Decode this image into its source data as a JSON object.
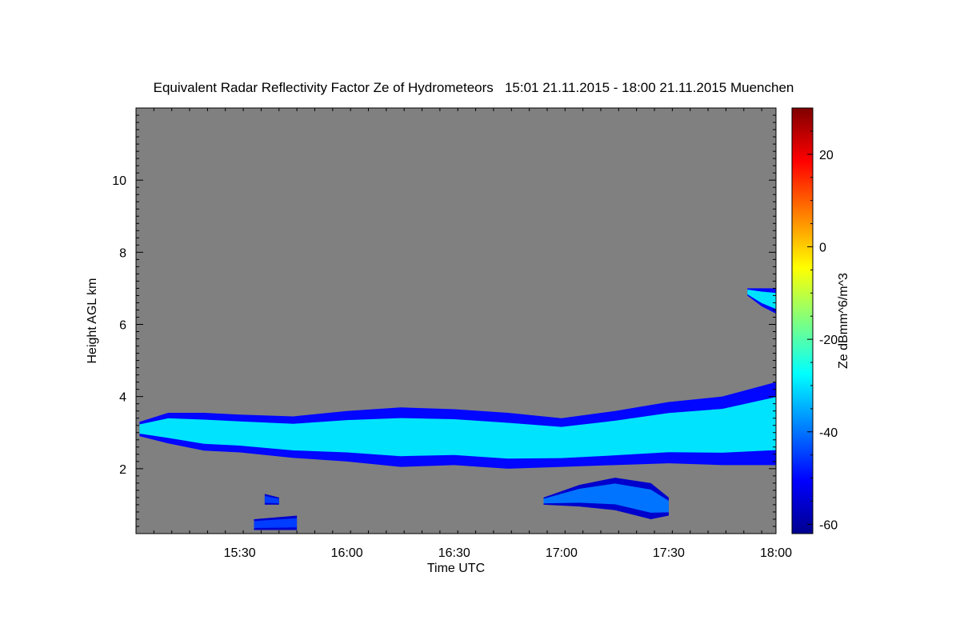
{
  "chart_data": {
    "type": "heatmap",
    "title": "Equivalent Radar Reflectivity Factor Ze of Hydrometeors   15:01 21.11.2015 - 18:00 21.11.2015 Muenchen",
    "xlabel": "Time UTC",
    "ylabel": "Height AGL km",
    "colorbar_label": "Ze dBmm^6/m^3",
    "x_ticks": [
      "15:30",
      "16:00",
      "16:30",
      "17:00",
      "17:30",
      "18:00"
    ],
    "y_ticks": [
      "2",
      "4",
      "6",
      "8",
      "10"
    ],
    "colorbar_ticks": [
      "20",
      "0",
      "-20",
      "-40",
      "-60"
    ],
    "xlim": [
      "15:01",
      "18:00"
    ],
    "ylim": [
      0.2,
      12
    ],
    "clim": [
      -62,
      30
    ],
    "colormap": "jet",
    "background_color": "#808080",
    "echoes": [
      {
        "name": "main-cloud-layer",
        "x": [
          [
            "15:02",
            2.9,
            3.3
          ],
          [
            "15:10",
            2.7,
            3.55
          ],
          [
            "15:20",
            2.5,
            3.55
          ],
          [
            "15:30",
            2.45,
            3.5
          ],
          [
            "15:45",
            2.3,
            3.45
          ],
          [
            "16:00",
            2.2,
            3.6
          ],
          [
            "16:15",
            2.05,
            3.7
          ],
          [
            "16:30",
            2.1,
            3.65
          ],
          [
            "16:45",
            2.0,
            3.55
          ],
          [
            "17:00",
            2.05,
            3.4
          ],
          [
            "17:15",
            2.1,
            3.6
          ],
          [
            "17:30",
            2.15,
            3.85
          ],
          [
            "17:45",
            2.1,
            4.0
          ],
          [
            "18:00",
            2.1,
            4.4
          ]
        ],
        "core_dbz": -30,
        "edge_dbz": -50
      },
      {
        "name": "low-echo-17h",
        "x": [
          [
            "16:55",
            1.0,
            1.2
          ],
          [
            "17:05",
            0.95,
            1.55
          ],
          [
            "17:15",
            0.85,
            1.75
          ],
          [
            "17:25",
            0.6,
            1.6
          ],
          [
            "17:30",
            0.7,
            1.2
          ]
        ],
        "core_dbz": -40,
        "edge_dbz": -55
      },
      {
        "name": "upper-echo-17h55",
        "x": [
          [
            "17:52",
            6.8,
            7.0
          ],
          [
            "17:56",
            6.5,
            7.0
          ],
          [
            "18:00",
            6.3,
            7.0
          ]
        ],
        "core_dbz": -30,
        "edge_dbz": -50
      },
      {
        "name": "low-fragment-15h40",
        "x": [
          [
            "15:37",
            1.0,
            1.3
          ],
          [
            "15:41",
            1.0,
            1.2
          ]
        ],
        "core_dbz": -45,
        "edge_dbz": -55
      },
      {
        "name": "surface-clutter-15h40",
        "x": [
          [
            "15:34",
            0.3,
            0.6
          ],
          [
            "15:46",
            0.3,
            0.7
          ]
        ],
        "core_dbz": -45,
        "edge_dbz": -55
      }
    ]
  }
}
